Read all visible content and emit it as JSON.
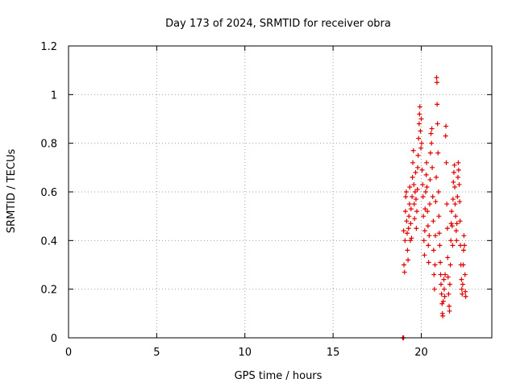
{
  "chart_data": {
    "type": "scatter",
    "title": "Day 173 of 2024, SRMTID for receiver obra",
    "xlabel": "GPS time / hours",
    "ylabel": "SRMTID / TECUs",
    "xlim": [
      0,
      24
    ],
    "ylim": [
      0,
      1.2
    ],
    "xticks": [
      0,
      5,
      10,
      15,
      20
    ],
    "yticks": [
      0,
      0.2,
      0.4,
      0.6,
      0.8,
      1,
      1.2
    ],
    "xtick_labels": [
      "0",
      "5",
      "10",
      "15",
      "20"
    ],
    "ytick_labels": [
      "0",
      "0.2",
      "0.4",
      "0.6",
      "0.8",
      "1",
      "1.2"
    ],
    "grid": true,
    "marker": "+",
    "color": "#e00000",
    "series": [
      {
        "name": "obra",
        "points": [
          [
            18.95,
            0.0
          ],
          [
            19.0,
            0.0
          ],
          [
            19.0,
            0.44
          ],
          [
            19.02,
            0.3
          ],
          [
            19.05,
            0.27
          ],
          [
            19.08,
            0.4
          ],
          [
            19.1,
            0.52
          ],
          [
            19.12,
            0.58
          ],
          [
            19.15,
            0.6
          ],
          [
            19.17,
            0.48
          ],
          [
            19.2,
            0.43
          ],
          [
            19.22,
            0.36
          ],
          [
            19.25,
            0.32
          ],
          [
            19.28,
            0.45
          ],
          [
            19.3,
            0.5
          ],
          [
            19.33,
            0.55
          ],
          [
            19.35,
            0.62
          ],
          [
            19.38,
            0.4
          ],
          [
            19.4,
            0.47
          ],
          [
            19.42,
            0.53
          ],
          [
            19.45,
            0.41
          ],
          [
            19.48,
            0.58
          ],
          [
            19.5,
            0.66
          ],
          [
            19.52,
            0.72
          ],
          [
            19.55,
            0.77
          ],
          [
            19.58,
            0.63
          ],
          [
            19.6,
            0.55
          ],
          [
            19.62,
            0.49
          ],
          [
            19.65,
            0.6
          ],
          [
            19.68,
            0.68
          ],
          [
            19.7,
            0.57
          ],
          [
            19.72,
            0.45
          ],
          [
            19.75,
            0.52
          ],
          [
            19.78,
            0.61
          ],
          [
            19.8,
            0.7
          ],
          [
            19.82,
            0.75
          ],
          [
            19.85,
            0.82
          ],
          [
            19.88,
            0.88
          ],
          [
            19.9,
            0.92
          ],
          [
            19.92,
            0.95
          ],
          [
            19.95,
            0.85
          ],
          [
            19.98,
            0.78
          ],
          [
            20.0,
            0.9
          ],
          [
            20.02,
            0.8
          ],
          [
            20.05,
            0.69
          ],
          [
            20.08,
            0.63
          ],
          [
            20.1,
            0.58
          ],
          [
            20.12,
            0.5
          ],
          [
            20.15,
            0.4
          ],
          [
            20.18,
            0.34
          ],
          [
            20.2,
            0.44
          ],
          [
            20.22,
            0.53
          ],
          [
            20.25,
            0.6
          ],
          [
            20.28,
            0.67
          ],
          [
            20.3,
            0.72
          ],
          [
            20.32,
            0.62
          ],
          [
            20.35,
            0.52
          ],
          [
            20.38,
            0.46
          ],
          [
            20.4,
            0.38
          ],
          [
            20.42,
            0.31
          ],
          [
            20.45,
            0.42
          ],
          [
            20.48,
            0.55
          ],
          [
            20.5,
            0.65
          ],
          [
            20.52,
            0.76
          ],
          [
            20.55,
            0.84
          ],
          [
            20.58,
            0.8
          ],
          [
            20.6,
            0.86
          ],
          [
            20.62,
            0.7
          ],
          [
            20.65,
            0.58
          ],
          [
            20.68,
            0.48
          ],
          [
            20.7,
            0.36
          ],
          [
            20.72,
            0.26
          ],
          [
            20.75,
            0.2
          ],
          [
            20.78,
            0.3
          ],
          [
            20.8,
            0.42
          ],
          [
            20.82,
            0.56
          ],
          [
            20.85,
            0.66
          ],
          [
            20.87,
            1.07
          ],
          [
            20.89,
            1.05
          ],
          [
            20.9,
            0.96
          ],
          [
            20.92,
            0.88
          ],
          [
            20.95,
            0.76
          ],
          [
            20.98,
            0.6
          ],
          [
            21.0,
            0.5
          ],
          [
            21.02,
            0.43
          ],
          [
            21.05,
            0.38
          ],
          [
            21.08,
            0.31
          ],
          [
            21.1,
            0.26
          ],
          [
            21.12,
            0.22
          ],
          [
            21.15,
            0.18
          ],
          [
            21.18,
            0.14
          ],
          [
            21.2,
            0.1
          ],
          [
            21.22,
            0.09
          ],
          [
            21.25,
            0.15
          ],
          [
            21.28,
            0.24
          ],
          [
            21.3,
            0.2
          ],
          [
            21.33,
            0.17
          ],
          [
            21.35,
            0.26
          ],
          [
            21.38,
            0.83
          ],
          [
            21.4,
            0.87
          ],
          [
            21.42,
            0.72
          ],
          [
            21.45,
            0.55
          ],
          [
            21.48,
            0.45
          ],
          [
            21.5,
            0.33
          ],
          [
            21.52,
            0.25
          ],
          [
            21.55,
            0.18
          ],
          [
            21.58,
            0.13
          ],
          [
            21.6,
            0.11
          ],
          [
            21.62,
            0.22
          ],
          [
            21.65,
            0.3
          ],
          [
            21.68,
            0.4
          ],
          [
            21.7,
            0.47
          ],
          [
            21.72,
            0.52
          ],
          [
            21.75,
            0.46
          ],
          [
            21.78,
            0.38
          ],
          [
            21.8,
            0.57
          ],
          [
            21.82,
            0.64
          ],
          [
            21.85,
            0.68
          ],
          [
            21.88,
            0.71
          ],
          [
            21.9,
            0.62
          ],
          [
            21.92,
            0.55
          ],
          [
            21.95,
            0.5
          ],
          [
            21.98,
            0.44
          ],
          [
            22.0,
            0.4
          ],
          [
            22.02,
            0.47
          ],
          [
            22.05,
            0.58
          ],
          [
            22.08,
            0.66
          ],
          [
            22.1,
            0.72
          ],
          [
            22.12,
            0.69
          ],
          [
            22.15,
            0.63
          ],
          [
            22.18,
            0.56
          ],
          [
            22.2,
            0.48
          ],
          [
            22.22,
            0.38
          ],
          [
            22.25,
            0.3
          ],
          [
            22.28,
            0.24
          ],
          [
            22.3,
            0.2
          ],
          [
            22.32,
            0.18
          ],
          [
            22.35,
            0.22
          ],
          [
            22.38,
            0.3
          ],
          [
            22.4,
            0.36
          ],
          [
            22.42,
            0.42
          ],
          [
            22.45,
            0.38
          ],
          [
            22.48,
            0.26
          ],
          [
            22.5,
            0.19
          ],
          [
            22.52,
            0.17
          ]
        ]
      }
    ]
  }
}
